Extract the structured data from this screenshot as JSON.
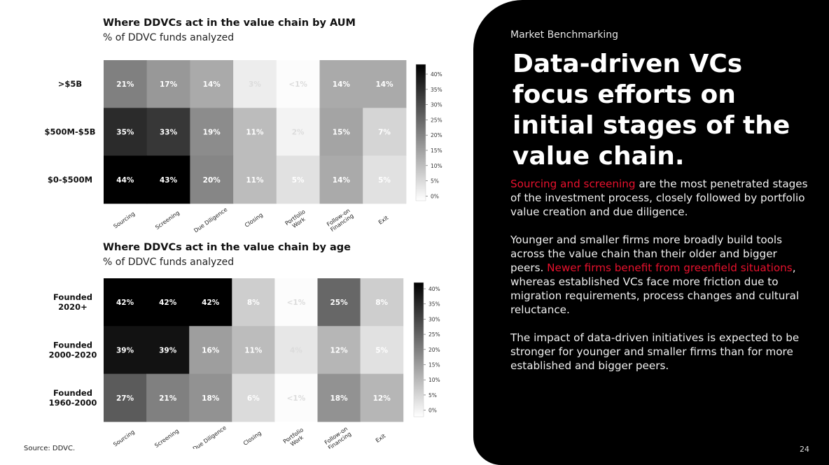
{
  "source": "Source: DDVC.",
  "page_number": "24",
  "right_panel": {
    "eyebrow": "Market Benchmarking",
    "headline": "Data-driven VCs focus efforts on initial stages of the value chain.",
    "p1_highlight": "Sourcing and screening",
    "p1_rest": " are the most penetrated stages of the investment process, closely followed by portfolio value creation and due diligence.",
    "p2_start": "Younger and smaller firms more broadly build tools across the value chain than their older and bigger peers. ",
    "p2_highlight": "Newer firms benefit from greenfield situations",
    "p2_rest": ", whereas established VCs face more friction due to migration requirements, process changes and cultural reluctance.",
    "p3": "The impact of data-driven initiatives is expected to be stronger for younger and smaller firms than for more established and bigger peers."
  },
  "colors": {
    "panel_bg": "#000000",
    "accent_red": "#e8112d"
  },
  "chart_data": [
    {
      "type": "heatmap",
      "title": "Where DDVCs act in the value chain by AUM",
      "subtitle": "% of DDVC funds analyzed",
      "x_categories": [
        "Sourcing",
        "Screening",
        "Due Diligence",
        "Closing",
        "Portfolio Work",
        "Follow-on Financing",
        "Exit"
      ],
      "rows": [
        {
          "label": ">$5B",
          "values": [
            21,
            17,
            14,
            3,
            0.5,
            14,
            14
          ],
          "labels": [
            "21%",
            "17%",
            "14%",
            "3%",
            "<1%",
            "14%",
            "14%"
          ]
        },
        {
          "label": "$500M-$5B",
          "values": [
            35,
            33,
            19,
            11,
            2,
            15,
            7
          ],
          "labels": [
            "35%",
            "33%",
            "19%",
            "11%",
            "2%",
            "15%",
            "7%"
          ]
        },
        {
          "label": "$0-$500M",
          "values": [
            44,
            43,
            20,
            11,
            5,
            14,
            5
          ],
          "labels": [
            "44%",
            "43%",
            "20%",
            "11%",
            "5%",
            "14%",
            "5%"
          ]
        }
      ],
      "colorbar": {
        "min": 0,
        "max": 42,
        "ticks": [
          "40%",
          "35%",
          "30%",
          "25%",
          "20%",
          "15%",
          "10%",
          "5%",
          "0%"
        ]
      }
    },
    {
      "type": "heatmap",
      "title": "Where DDVCs act in the value chain by age",
      "subtitle": "% of DDVC funds analyzed",
      "x_categories": [
        "Sourcing",
        "Screening",
        "Due Diligence",
        "Closing",
        "Portfolio Work",
        "Follow-on Financing",
        "Exit"
      ],
      "rows": [
        {
          "label": "Founded 2020+",
          "values": [
            42,
            42,
            42,
            8,
            0.5,
            25,
            8
          ],
          "labels": [
            "42%",
            "42%",
            "42%",
            "8%",
            "<1%",
            "25%",
            "8%"
          ]
        },
        {
          "label": "Founded 2000-2020",
          "values": [
            39,
            39,
            16,
            11,
            4,
            12,
            5
          ],
          "labels": [
            "39%",
            "39%",
            "16%",
            "11%",
            "4%",
            "12%",
            "5%"
          ]
        },
        {
          "label": "Founded 1960-2000",
          "values": [
            27,
            21,
            18,
            6,
            0.5,
            18,
            12
          ],
          "labels": [
            "27%",
            "21%",
            "18%",
            "6%",
            "<1%",
            "18%",
            "12%"
          ]
        }
      ],
      "colorbar": {
        "min": 0,
        "max": 42,
        "ticks": [
          "40%",
          "35%",
          "30%",
          "25%",
          "20%",
          "15%",
          "10%",
          "5%",
          "0%"
        ]
      }
    }
  ]
}
